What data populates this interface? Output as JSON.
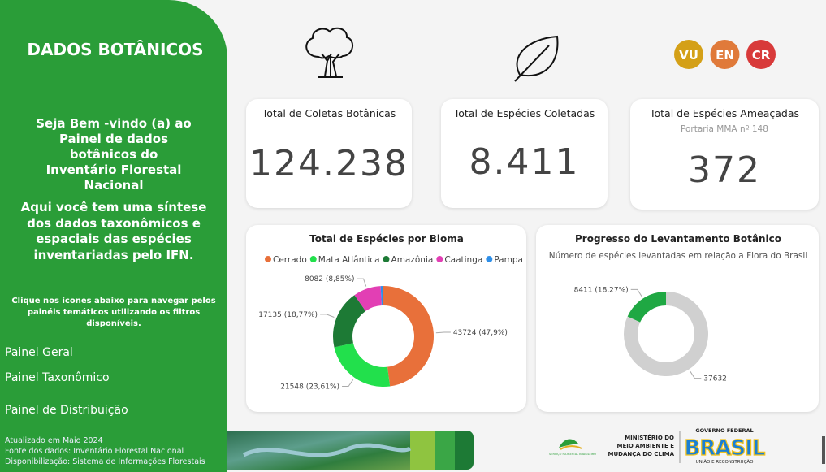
{
  "sidebar": {
    "title": "DADOS BOTÂNICOS",
    "welcome": "Seja Bem -vindo (a) ao Painel de dados botânicos do Inventário Florestal Nacional",
    "summary": "Aqui você tem uma síntese dos dados taxonômicos e espaciais das espécies inventariadas pelo IFN.",
    "instruction": "Clique nos ícones abaixo para navegar pelos painéis temáticos utilizando os filtros disponíveis.",
    "links": [
      "Painel Geral",
      "Painel Taxonômico",
      "Painel de Distribuição"
    ],
    "footer": [
      "Atualizado em Maio 2024",
      "Fonte dos dados: Inventário Florestal Nacional",
      "Disponibilização: Sistema de Informações Florestais"
    ]
  },
  "badges": [
    "VU",
    "EN",
    "CR"
  ],
  "cards": [
    {
      "title": "Total de Coletas Botânicas",
      "value": "124.238"
    },
    {
      "title": "Total de Espécies Coletadas",
      "value": "8.411"
    },
    {
      "title": "Total de Espécies Ameaçadas",
      "subtitle": "Portaria MMA nº 148",
      "value": "372"
    }
  ],
  "chart_data": [
    {
      "type": "pie",
      "title": "Total de Espécies por Bioma",
      "categories": [
        "Cerrado",
        "Mata Atlântica",
        "Amazônia",
        "Caatinga",
        "Pampa"
      ],
      "values": [
        43724,
        21548,
        17135,
        8082,
        793
      ],
      "value_labels": [
        "43724 (47,9%)",
        "21548 (23,61%)",
        "17135 (18,77%)",
        "8082 (8,85%)",
        null
      ],
      "colors": [
        "#e8703a",
        "#22e04c",
        "#1d7a35",
        "#e23fb4",
        "#2f8fe8"
      ]
    },
    {
      "type": "pie",
      "title": "Progresso do Levantamento Botânico",
      "subtitle": "Número de espécies levantadas em relação a Flora do Brasil",
      "values": [
        8411,
        37632
      ],
      "value_labels": [
        "8411 (18,27%)",
        "37632"
      ],
      "colors": [
        "#1fa843",
        "#d0d0d0"
      ]
    }
  ],
  "logos": {
    "sfb": "SERVIÇO FLORESTAL BRASILEIRO",
    "ministry": [
      "MINISTÉRIO DO",
      "MEIO AMBIENTE E",
      "MUDANÇA DO CLIMA"
    ],
    "government": "GOVERNO FEDERAL",
    "brand": "BRASIL",
    "slogan": "UNIÃO E RECONSTRUÇÃO"
  }
}
